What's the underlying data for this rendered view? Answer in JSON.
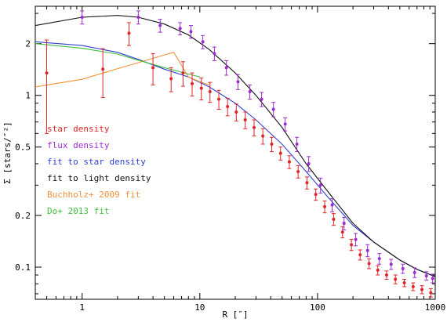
{
  "chart_data": {
    "type": "scatter",
    "xlabel": "R [″]",
    "ylabel": "Σ  [stars/″²]",
    "xscale": "log",
    "yscale": "log",
    "xlim": [
      0.4,
      1000
    ],
    "ylim": [
      0.065,
      3.3
    ],
    "x_ticks": [
      1,
      10,
      100,
      1000
    ],
    "x_ticklabels": [
      "1",
      "10",
      "100",
      "1000"
    ],
    "y_ticks": [
      0.1,
      0.2,
      0.5,
      1,
      2
    ],
    "y_ticklabels": [
      "0.1",
      "0.2",
      "0.5",
      "1",
      "2"
    ],
    "legend_position": "left",
    "legend": [
      {
        "label": "star density",
        "color": "#e0252a"
      },
      {
        "label": "flux density",
        "color": "#9b2cd0"
      },
      {
        "label": "fit to star density",
        "color": "#2f3fd0"
      },
      {
        "label": "fit to light density",
        "color": "#111111"
      },
      {
        "label": "Buchholz+ 2009 fit",
        "color": "#f0913a"
      },
      {
        "label": "Do+ 2013 fit",
        "color": "#3fbf3f"
      }
    ],
    "series": [
      {
        "name": "star density",
        "kind": "points",
        "color": "#e0252a",
        "x": [
          0.5,
          1.5,
          2.5,
          4.0,
          5.7,
          7.2,
          8.6,
          10.3,
          12.2,
          14.5,
          17.2,
          20.4,
          24.3,
          28.9,
          34.3,
          40.8,
          48.5,
          57.6,
          68.4,
          81.3,
          96.6,
          115,
          137,
          163,
          194,
          230,
          274,
          325,
          386,
          459,
          546,
          649,
          771,
          917
        ],
        "y": [
          1.35,
          1.42,
          2.3,
          1.45,
          1.25,
          1.35,
          1.17,
          1.1,
          1.05,
          0.95,
          0.86,
          0.8,
          0.72,
          0.65,
          0.58,
          0.52,
          0.46,
          0.41,
          0.36,
          0.31,
          0.265,
          0.225,
          0.19,
          0.16,
          0.135,
          0.118,
          0.105,
          0.096,
          0.09,
          0.085,
          0.081,
          0.077,
          0.074,
          0.071
        ],
        "err": [
          0.75,
          0.45,
          0.35,
          0.3,
          0.2,
          0.22,
          0.18,
          0.16,
          0.14,
          0.12,
          0.1,
          0.09,
          0.08,
          0.07,
          0.06,
          0.05,
          0.04,
          0.035,
          0.03,
          0.025,
          0.02,
          0.018,
          0.015,
          0.012,
          0.01,
          0.008,
          0.007,
          0.006,
          0.005,
          0.005,
          0.004,
          0.004,
          0.004,
          0.004
        ]
      },
      {
        "name": "flux density",
        "kind": "points",
        "color": "#9b2cd0",
        "x": [
          1.0,
          3.0,
          4.6,
          6.8,
          8.4,
          10.6,
          13.3,
          16.8,
          21.1,
          26.6,
          33.5,
          42.2,
          53.1,
          66.8,
          84.1,
          106,
          133,
          168,
          211,
          266,
          335,
          422,
          531,
          668,
          841,
          950
        ],
        "y": [
          2.85,
          2.85,
          2.55,
          2.45,
          2.35,
          2.05,
          1.75,
          1.45,
          1.2,
          1.05,
          0.95,
          0.83,
          0.68,
          0.52,
          0.4,
          0.3,
          0.23,
          0.18,
          0.145,
          0.125,
          0.112,
          0.104,
          0.098,
          0.093,
          0.089,
          0.086
        ],
        "err": [
          0.25,
          0.25,
          0.22,
          0.2,
          0.2,
          0.18,
          0.16,
          0.14,
          0.12,
          0.1,
          0.09,
          0.08,
          0.06,
          0.05,
          0.04,
          0.03,
          0.02,
          0.015,
          0.012,
          0.01,
          0.008,
          0.007,
          0.006,
          0.006,
          0.005,
          0.005
        ]
      },
      {
        "name": "fit to star density",
        "kind": "line",
        "color": "#2f3fd0",
        "x": [
          0.4,
          1,
          2,
          3,
          5,
          8,
          12,
          20,
          30,
          50,
          80,
          120,
          200,
          300,
          500,
          700,
          1000
        ],
        "y": [
          2.05,
          1.95,
          1.78,
          1.62,
          1.42,
          1.28,
          1.12,
          0.9,
          0.72,
          0.52,
          0.36,
          0.26,
          0.175,
          0.14,
          0.11,
          0.097,
          0.088
        ]
      },
      {
        "name": "fit to light density",
        "kind": "line",
        "color": "#111111",
        "x": [
          0.4,
          1,
          2,
          3,
          5,
          8,
          12,
          20,
          30,
          50,
          80,
          120,
          200,
          300,
          500,
          700,
          1000
        ],
        "y": [
          2.55,
          2.85,
          2.92,
          2.85,
          2.6,
          2.25,
          1.85,
          1.35,
          1.0,
          0.65,
          0.4,
          0.28,
          0.18,
          0.14,
          0.11,
          0.097,
          0.088
        ]
      },
      {
        "name": "Buchholz+ 2009 fit",
        "kind": "line",
        "color": "#f0913a",
        "x": [
          0.4,
          1,
          2,
          3,
          5,
          6,
          8,
          10,
          12
        ],
        "y": [
          1.12,
          1.24,
          1.43,
          1.55,
          1.72,
          1.78,
          1.28,
          1.2,
          1.15
        ]
      },
      {
        "name": "Do+ 2013 fit",
        "kind": "line",
        "color": "#3fbf3f",
        "x": [
          0.4,
          1,
          2,
          3,
          5,
          8,
          10
        ],
        "y": [
          2.0,
          1.88,
          1.74,
          1.6,
          1.45,
          1.33,
          1.28
        ]
      }
    ]
  }
}
